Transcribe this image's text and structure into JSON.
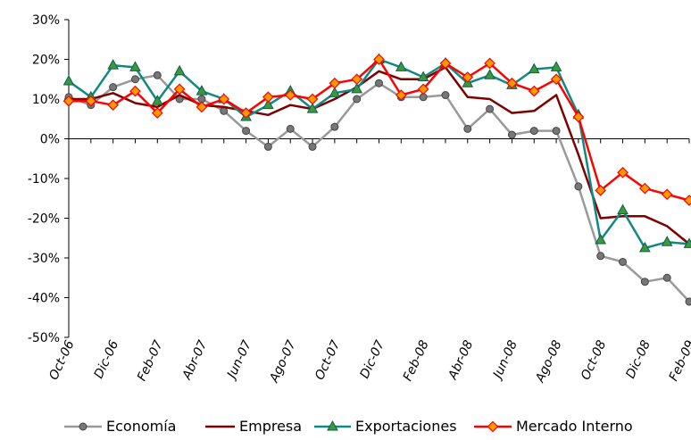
{
  "chart_data": {
    "type": "line",
    "title": "",
    "xlabel": "",
    "ylabel": "",
    "ylim": [
      -50,
      30
    ],
    "y_ticks": [
      30,
      20,
      10,
      0,
      -10,
      -20,
      -30,
      -40,
      -50
    ],
    "y_tick_labels": [
      "30%",
      "20%",
      "10%",
      "0%",
      "-10%",
      "-20%",
      "-30%",
      "-40%",
      "-50%"
    ],
    "x_tick_labels": [
      "Oct-06",
      "Dic-06",
      "Feb-07",
      "Abr-07",
      "Jun-07",
      "Ago-07",
      "Oct-07",
      "Dic-07",
      "Feb-08",
      "Abr-08",
      "Jun-08",
      "Ago-08",
      "Oct-08",
      "Dic-08",
      "Feb-09"
    ],
    "categories": [
      "Oct-06",
      "Nov-06",
      "Dic-06",
      "Ene-07",
      "Feb-07",
      "Mar-07",
      "Abr-07",
      "May-07",
      "Jun-07",
      "Jul-07",
      "Ago-07",
      "Sep-07",
      "Oct-07",
      "Nov-07",
      "Dic-07",
      "Ene-08",
      "Feb-08",
      "Mar-08",
      "Abr-08",
      "May-08",
      "Jun-08",
      "Jul-08",
      "Ago-08",
      "Sep-08",
      "Oct-08",
      "Nov-08",
      "Dic-08",
      "Ene-09",
      "Feb-09"
    ],
    "grid": false,
    "legend_position": "bottom",
    "series": [
      {
        "name": "Economía",
        "color": "#999999",
        "marker": "circle",
        "values": [
          10.5,
          8.5,
          13,
          15,
          16,
          10,
          10,
          7,
          2,
          -2,
          2.5,
          -2,
          3,
          10,
          14,
          10.5,
          10.5,
          11,
          2.5,
          7.5,
          1,
          2,
          2,
          -12,
          -29.5,
          -31,
          -36,
          -35,
          -41
        ]
      },
      {
        "name": "Empresa",
        "color": "#800000",
        "marker": "none",
        "values": [
          10,
          10,
          11.5,
          9,
          8,
          11,
          8.5,
          8,
          7,
          6,
          8.5,
          7.5,
          10,
          13,
          17,
          15,
          15,
          18,
          10.5,
          10,
          6.5,
          7,
          11,
          -4,
          -20,
          -19.5,
          -19.5,
          -22,
          -26.5
        ]
      },
      {
        "name": "Exportaciones",
        "color": "#0e8a82",
        "marker": "triangle",
        "values": [
          14.5,
          10.5,
          18.5,
          18,
          9.5,
          17,
          12,
          10,
          5.5,
          8.5,
          12,
          7.5,
          11.5,
          12.5,
          20,
          18,
          15.5,
          19,
          14,
          16,
          13.5,
          17.5,
          18,
          6,
          -25.5,
          -18,
          -27.5,
          -26,
          -26.5
        ]
      },
      {
        "name": "Mercado Interno",
        "color": "#ff0000",
        "marker": "diamond",
        "values": [
          9.5,
          9.5,
          8.5,
          12,
          6.5,
          12.5,
          8,
          10,
          6.5,
          10.5,
          11,
          10,
          14,
          15,
          20,
          11,
          12.5,
          19,
          15.5,
          19,
          14,
          12,
          15,
          5.5,
          -13,
          -8.5,
          -12.5,
          -14,
          -15.5
        ]
      }
    ]
  }
}
